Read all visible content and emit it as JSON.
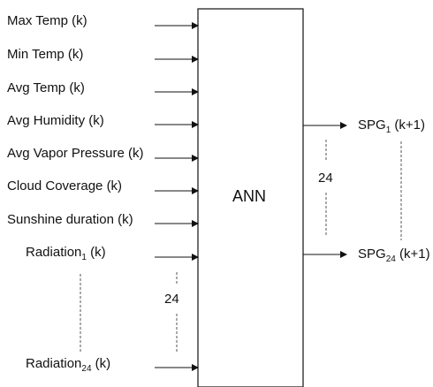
{
  "block": {
    "label": "ANN"
  },
  "inputs": [
    {
      "text": "Max Temp (k)"
    },
    {
      "text": "Min Temp (k)"
    },
    {
      "text": "Avg Temp (k)"
    },
    {
      "text": "Avg Humidity (k)"
    },
    {
      "text": "Avg Vapor Pressure (k)"
    },
    {
      "text": "Cloud Coverage (k)"
    },
    {
      "text": "Sunshine duration (k)"
    },
    {
      "base": "Radiation",
      "sub": "1",
      "suffix": " (k)"
    },
    {
      "base": "Radiation",
      "sub": "24",
      "suffix": " (k)"
    }
  ],
  "input_count_label": "24",
  "outputs": [
    {
      "base": "SPG",
      "sub": "1",
      "suffix": " (k+1)"
    },
    {
      "base": "SPG",
      "sub": "24",
      "suffix": " (k+1)"
    }
  ],
  "output_count_label": "24",
  "colors": {
    "line": "#111111",
    "text": "#111111",
    "dashed": "#555555"
  }
}
